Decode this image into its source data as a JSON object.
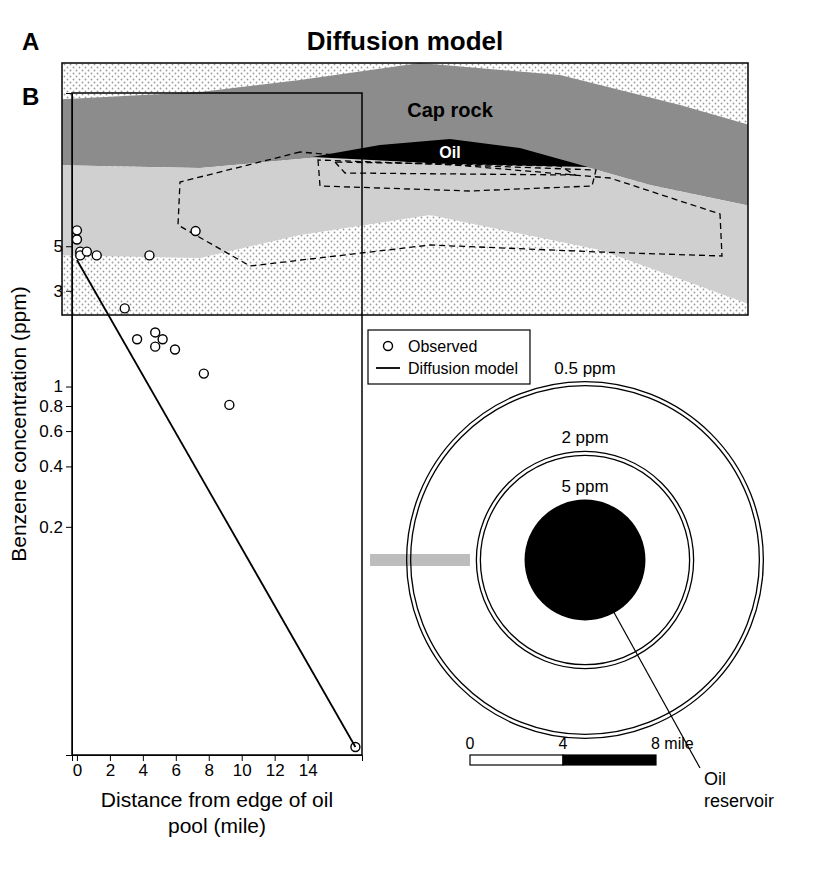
{
  "panel_a": {
    "letter": "A",
    "title": "Diffusion model",
    "cap_rock": "Cap rock",
    "oil": "Oil"
  },
  "chart_data": {
    "type": "scatter",
    "letter": "B",
    "x_label": "Distance from edge of oil pool (mile)",
    "y_label": "Benzene concentration (ppm)",
    "xlim": [
      -0.3,
      17.3
    ],
    "xticks": [
      0,
      2,
      4,
      6,
      8,
      10,
      12,
      14
    ],
    "ylim": [
      0.0146,
      29
    ],
    "yticks": [
      0.2,
      0.4,
      0.6,
      0.8,
      1,
      3,
      5
    ],
    "log": "y",
    "grid": false,
    "legend": "right",
    "series": [
      {
        "name": "Observed",
        "type": "scatter",
        "marker": "circle",
        "color": "#000000",
        "x": [
          0.0,
          0.0,
          0.2,
          0.2,
          0.6,
          1.2,
          2.9,
          3.65,
          4.75,
          5.2,
          4.75,
          5.95,
          7.7,
          9.25,
          4.4,
          7.2,
          16.9
        ],
        "values": [
          6.0,
          5.4,
          4.7,
          4.5,
          4.7,
          4.5,
          2.45,
          1.72,
          1.86,
          1.72,
          1.58,
          1.53,
          1.16,
          0.81,
          4.5,
          5.95,
          0.016
        ]
      },
      {
        "name": "Diffusion model",
        "type": "line",
        "line_style": "solid",
        "color": "#000000",
        "x": [
          0.0,
          16.9
        ],
        "values": [
          4.27,
          0.016
        ]
      }
    ]
  },
  "map": {
    "contours": [
      {
        "label": "0.5 ppm",
        "radius": 7.5
      },
      {
        "label": "2 ppm",
        "radius": 4.5
      },
      {
        "label": "5 ppm",
        "radius": 2.6
      }
    ],
    "reservoir_label": "Oil reservoir",
    "scale_bar": {
      "ticks": [
        0,
        4,
        {
          "value": 8,
          "label": "8 mile"
        }
      ]
    }
  }
}
